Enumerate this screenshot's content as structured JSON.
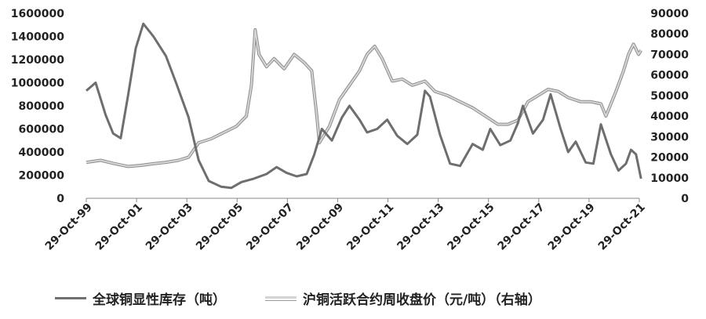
{
  "chart_data": {
    "type": "line",
    "title": "",
    "xlabel": "",
    "ylabel": "",
    "ylim_left": [
      0,
      1600000
    ],
    "ylim_right": [
      0,
      90000
    ],
    "y_ticks_left": [
      "0",
      "200000",
      "400000",
      "600000",
      "800000",
      "1000000",
      "1200000",
      "1400000",
      "1600000"
    ],
    "y_ticks_right": [
      "0",
      "10000",
      "20000",
      "30000",
      "40000",
      "50000",
      "60000",
      "70000",
      "80000",
      "90000"
    ],
    "x_ticks": [
      "29-Oct-99",
      "29-Oct-01",
      "29-Oct-03",
      "29-Oct-05",
      "29-Oct-07",
      "29-Oct-09",
      "29-Oct-11",
      "29-Oct-13",
      "29-Oct-15",
      "29-Oct-17",
      "29-Oct-19",
      "29-Oct-21"
    ],
    "legend_position": "bottom",
    "series": [
      {
        "name": "全球铜显性库存（吨）",
        "axis": "left",
        "color": "#6e6e6e",
        "points": [
          [
            1999.83,
            930000
          ],
          [
            2000.2,
            1000000
          ],
          [
            2000.6,
            720000
          ],
          [
            2000.9,
            560000
          ],
          [
            2001.2,
            520000
          ],
          [
            2001.5,
            900000
          ],
          [
            2001.8,
            1300000
          ],
          [
            2002.1,
            1510000
          ],
          [
            2002.5,
            1400000
          ],
          [
            2003.0,
            1230000
          ],
          [
            2003.4,
            1000000
          ],
          [
            2003.9,
            700000
          ],
          [
            2004.3,
            330000
          ],
          [
            2004.7,
            150000
          ],
          [
            2005.2,
            100000
          ],
          [
            2005.6,
            90000
          ],
          [
            2006.0,
            140000
          ],
          [
            2006.5,
            170000
          ],
          [
            2007.0,
            210000
          ],
          [
            2007.4,
            270000
          ],
          [
            2007.8,
            220000
          ],
          [
            2008.2,
            190000
          ],
          [
            2008.6,
            210000
          ],
          [
            2008.9,
            380000
          ],
          [
            2009.2,
            600000
          ],
          [
            2009.6,
            500000
          ],
          [
            2010.0,
            700000
          ],
          [
            2010.3,
            800000
          ],
          [
            2010.7,
            680000
          ],
          [
            2011.0,
            570000
          ],
          [
            2011.4,
            600000
          ],
          [
            2011.8,
            680000
          ],
          [
            2012.2,
            540000
          ],
          [
            2012.6,
            470000
          ],
          [
            2013.0,
            550000
          ],
          [
            2013.3,
            930000
          ],
          [
            2013.5,
            880000
          ],
          [
            2013.9,
            550000
          ],
          [
            2014.3,
            300000
          ],
          [
            2014.7,
            280000
          ],
          [
            2015.2,
            470000
          ],
          [
            2015.6,
            420000
          ],
          [
            2015.9,
            600000
          ],
          [
            2016.3,
            460000
          ],
          [
            2016.7,
            500000
          ],
          [
            2017.0,
            650000
          ],
          [
            2017.2,
            800000
          ],
          [
            2017.6,
            560000
          ],
          [
            2018.0,
            680000
          ],
          [
            2018.3,
            900000
          ],
          [
            2018.7,
            600000
          ],
          [
            2019.0,
            400000
          ],
          [
            2019.3,
            490000
          ],
          [
            2019.7,
            310000
          ],
          [
            2020.0,
            300000
          ],
          [
            2020.3,
            640000
          ],
          [
            2020.7,
            380000
          ],
          [
            2021.0,
            240000
          ],
          [
            2021.3,
            300000
          ],
          [
            2021.5,
            420000
          ],
          [
            2021.7,
            380000
          ],
          [
            2021.9,
            170000
          ]
        ]
      },
      {
        "name": "沪铜活跃合约周收盘价（元/吨）（右轴）",
        "axis": "right",
        "color": "#d6d6d6",
        "points": [
          [
            1999.83,
            17500
          ],
          [
            2000.4,
            18500
          ],
          [
            2000.9,
            17000
          ],
          [
            2001.5,
            15500
          ],
          [
            2002.0,
            16000
          ],
          [
            2002.5,
            16800
          ],
          [
            2003.0,
            17500
          ],
          [
            2003.5,
            18500
          ],
          [
            2003.9,
            20000
          ],
          [
            2004.3,
            27000
          ],
          [
            2004.8,
            29000
          ],
          [
            2005.3,
            32000
          ],
          [
            2005.8,
            35000
          ],
          [
            2006.2,
            40000
          ],
          [
            2006.4,
            55000
          ],
          [
            2006.55,
            82000
          ],
          [
            2006.7,
            70000
          ],
          [
            2007.0,
            64000
          ],
          [
            2007.3,
            68000
          ],
          [
            2007.7,
            63000
          ],
          [
            2008.1,
            70000
          ],
          [
            2008.5,
            66000
          ],
          [
            2008.8,
            62000
          ],
          [
            2009.0,
            40000
          ],
          [
            2009.1,
            27000
          ],
          [
            2009.5,
            35000
          ],
          [
            2009.9,
            48000
          ],
          [
            2010.3,
            55000
          ],
          [
            2010.7,
            62000
          ],
          [
            2011.0,
            70000
          ],
          [
            2011.3,
            74000
          ],
          [
            2011.6,
            68000
          ],
          [
            2012.0,
            57000
          ],
          [
            2012.4,
            58000
          ],
          [
            2012.8,
            55000
          ],
          [
            2013.3,
            57000
          ],
          [
            2013.7,
            52000
          ],
          [
            2014.2,
            50000
          ],
          [
            2014.7,
            47000
          ],
          [
            2015.2,
            44000
          ],
          [
            2015.7,
            40000
          ],
          [
            2016.2,
            36000
          ],
          [
            2016.6,
            36000
          ],
          [
            2017.0,
            38000
          ],
          [
            2017.4,
            47000
          ],
          [
            2017.8,
            50000
          ],
          [
            2018.2,
            53000
          ],
          [
            2018.6,
            52000
          ],
          [
            2019.0,
            49000
          ],
          [
            2019.5,
            47000
          ],
          [
            2019.9,
            47000
          ],
          [
            2020.3,
            46000
          ],
          [
            2020.5,
            40000
          ],
          [
            2020.9,
            52000
          ],
          [
            2021.2,
            62000
          ],
          [
            2021.4,
            70000
          ],
          [
            2021.6,
            75000
          ],
          [
            2021.8,
            70000
          ],
          [
            2021.9,
            72000
          ]
        ]
      }
    ]
  }
}
